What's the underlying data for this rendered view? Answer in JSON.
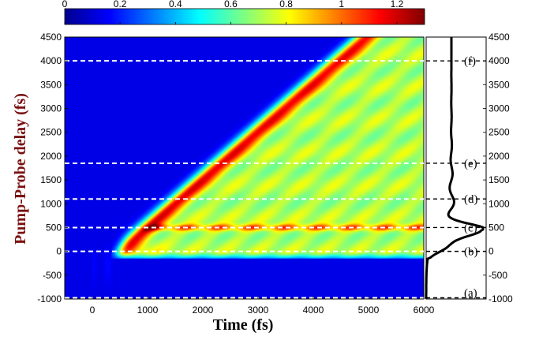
{
  "chart_data": {
    "type": "heatmap",
    "colormap": "jet",
    "xlabel": "Time (fs)",
    "ylabel": "Pump-Probe delay (fs)",
    "xlim": [
      -500,
      6000
    ],
    "ylim": [
      -1000,
      4500
    ],
    "x_ticks": [
      "0",
      "1000",
      "2000",
      "3000",
      "4000",
      "5000",
      "6000"
    ],
    "y_ticks": [
      "-1000",
      "-500",
      "0",
      "500",
      "1000",
      "1500",
      "2000",
      "2500",
      "3000",
      "3500",
      "4000",
      "4500"
    ],
    "right_y_ticks": [
      "-1000",
      "-500",
      "0",
      "500",
      "1000",
      "1500",
      "2000",
      "2500",
      "3000",
      "3500",
      "4000",
      "4500"
    ],
    "colorbar": {
      "range": [
        0,
        1.3
      ],
      "ticks": [
        "0",
        "0.2",
        "0.4",
        "0.6",
        "0.8",
        "1",
        "1.2"
      ]
    },
    "colors": {
      "background": "#0c1c8c",
      "dashed_lines": "#ffffff",
      "side_dashed_lines": "#000000",
      "profile_curve": "#000000"
    },
    "marked_delays": [
      {
        "label": "(a)",
        "delay": -1000
      },
      {
        "label": "(b)",
        "delay": 0
      },
      {
        "label": "(c)",
        "delay": 500
      },
      {
        "label": "(d)",
        "delay": 1100
      },
      {
        "label": "(e)",
        "delay": 1850
      },
      {
        "label": "(f)",
        "delay": 4000
      }
    ],
    "features": {
      "onset_time_fs": 500,
      "diagonal_band": {
        "from": [
          500,
          0
        ],
        "to": [
          4950,
          4500
        ]
      },
      "bright_band_delay_fs": 500,
      "peak_value": 1.3
    }
  }
}
